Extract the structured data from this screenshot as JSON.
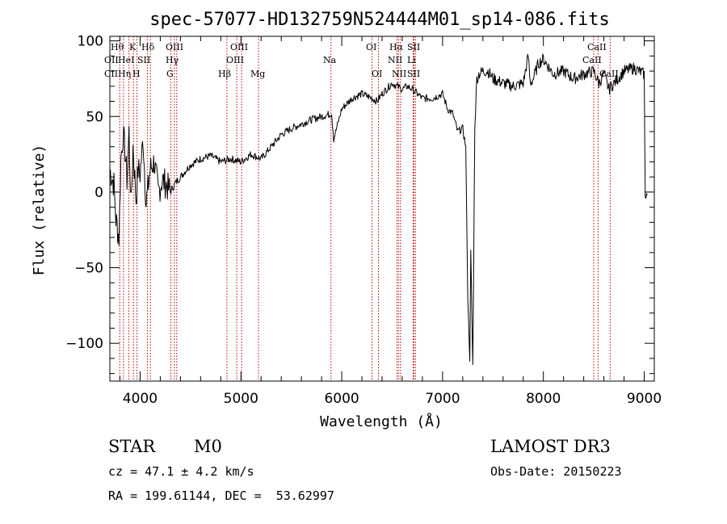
{
  "chart_data": {
    "type": "line",
    "title": "spec-57077-HD132759N524444M01_sp14-086.fits",
    "xlabel": "Wavelength (Å)",
    "ylabel": "Flux (relative)",
    "xlim": [
      3700,
      9100
    ],
    "ylim": [
      -125,
      103
    ],
    "xticks": [
      4000,
      5000,
      6000,
      7000,
      8000,
      9000
    ],
    "yticks": [
      -100,
      -50,
      0,
      50,
      100
    ],
    "series": [
      {
        "name": "spectrum",
        "x": [
          3700,
          3740,
          3760,
          3790,
          3810,
          3830,
          3850,
          3870,
          3890,
          3910,
          3930,
          3960,
          3980,
          4000,
          4030,
          4060,
          4100,
          4140,
          4180,
          4220,
          4260,
          4300,
          4340,
          4400,
          4500,
          4600,
          4700,
          4800,
          4900,
          5000,
          5100,
          5200,
          5300,
          5400,
          5500,
          5600,
          5700,
          5800,
          5900,
          5920,
          6000,
          6100,
          6200,
          6300,
          6350,
          6400,
          6500,
          6550,
          6600,
          6650,
          6700,
          6750,
          6800,
          6900,
          7000,
          7050,
          7100,
          7150,
          7200,
          7230,
          7250,
          7270,
          7280,
          7290,
          7300,
          7320,
          7340,
          7360,
          7400,
          7450,
          7500,
          7600,
          7700,
          7800,
          7850,
          7870,
          7900,
          7950,
          8000,
          8100,
          8200,
          8300,
          8400,
          8500,
          8550,
          8600,
          8650,
          8700,
          8800,
          8900,
          9000,
          9010,
          9030
        ],
        "y": [
          15,
          5,
          -18,
          -30,
          22,
          38,
          28,
          8,
          40,
          -10,
          30,
          -5,
          15,
          12,
          35,
          -8,
          15,
          20,
          0,
          8,
          5,
          0,
          5,
          10,
          18,
          22,
          24,
          20,
          22,
          20,
          25,
          22,
          30,
          38,
          42,
          45,
          48,
          50,
          52,
          35,
          55,
          62,
          65,
          62,
          60,
          65,
          72,
          70,
          68,
          70,
          68,
          65,
          62,
          62,
          65,
          55,
          52,
          40,
          42,
          30,
          -70,
          -110,
          -40,
          -80,
          -115,
          45,
          75,
          78,
          80,
          80,
          75,
          72,
          70,
          72,
          90,
          72,
          75,
          85,
          88,
          78,
          80,
          75,
          78,
          80,
          72,
          78,
          68,
          72,
          80,
          82,
          78,
          -1,
          -2
        ]
      }
    ],
    "emission_lines": [
      {
        "name": "Hθ",
        "x": 3798
      },
      {
        "name": "Hη",
        "x": 3835
      },
      {
        "name": "HeI",
        "x": 3889
      },
      {
        "name": "K",
        "x": 3934
      },
      {
        "name": "H",
        "x": 3969
      },
      {
        "name": "SII",
        "x": 4072
      },
      {
        "name": "Hδ",
        "x": 4102
      },
      {
        "name": "Hγ",
        "x": 4340
      },
      {
        "name": "G",
        "x": 4305
      },
      {
        "name": "OIII",
        "x": 4363
      },
      {
        "name": "Hβ",
        "x": 4861
      },
      {
        "name": "OIII",
        "x": 4959
      },
      {
        "name": "OIII",
        "x": 5007
      },
      {
        "name": "Mg",
        "x": 5175
      },
      {
        "name": "Na",
        "x": 5893
      },
      {
        "name": "OI",
        "x": 6300
      },
      {
        "name": "OI",
        "x": 6364
      },
      {
        "name": "NII",
        "x": 6548
      },
      {
        "name": "Hα",
        "x": 6563
      },
      {
        "name": "NII",
        "x": 6583
      },
      {
        "name": "Li",
        "x": 6708
      },
      {
        "name": "SII",
        "x": 6716
      },
      {
        "name": "SII",
        "x": 6731
      },
      {
        "name": "CaII",
        "x": 8498
      },
      {
        "name": "CaII",
        "x": 8542
      },
      {
        "name": "CaII",
        "x": 8662
      }
    ],
    "grid": false,
    "legend": "none"
  },
  "labels": [
    {
      "id": "h-theta",
      "text": "Hθ"
    },
    {
      "id": "oii",
      "text": "OII"
    },
    {
      "id": "cii",
      "text": "CII"
    },
    {
      "id": "k",
      "text": "K"
    },
    {
      "id": "hei",
      "text": "HeI"
    },
    {
      "id": "h-eta",
      "text": "Hη"
    },
    {
      "id": "h-delta",
      "text": "Hδ"
    },
    {
      "id": "sii-a",
      "text": "SII"
    },
    {
      "id": "h",
      "text": "H"
    },
    {
      "id": "oiii-a",
      "text": "OIII"
    },
    {
      "id": "h-gamma",
      "text": "Hγ"
    },
    {
      "id": "g",
      "text": "G"
    },
    {
      "id": "oiii-b",
      "text": "OIII"
    },
    {
      "id": "oiii-c",
      "text": "OIII"
    },
    {
      "id": "h-beta",
      "text": "Hβ"
    },
    {
      "id": "mg",
      "text": "Mg"
    },
    {
      "id": "na",
      "text": "Na"
    },
    {
      "id": "oi-a",
      "text": "OI"
    },
    {
      "id": "oi-b",
      "text": "OI"
    },
    {
      "id": "h-alpha",
      "text": "Hα"
    },
    {
      "id": "sii-b",
      "text": "SII"
    },
    {
      "id": "nii-a",
      "text": "NII"
    },
    {
      "id": "li",
      "text": "Li"
    },
    {
      "id": "nii-b",
      "text": "NII"
    },
    {
      "id": "sii-c",
      "text": "SII"
    },
    {
      "id": "caii-a",
      "text": "CaII"
    },
    {
      "id": "caii-b",
      "text": "CaII"
    },
    {
      "id": "caii-c",
      "text": "CaII"
    }
  ],
  "info": {
    "object_class": "STAR",
    "subclass": "M0",
    "redshift": "cz = 47.1 ± 4.2 km/s",
    "coords": "RA = 199.61144, DEC =  53.62997",
    "survey": "LAMOST DR3",
    "obs_date": "Obs-Date: 20150223"
  }
}
